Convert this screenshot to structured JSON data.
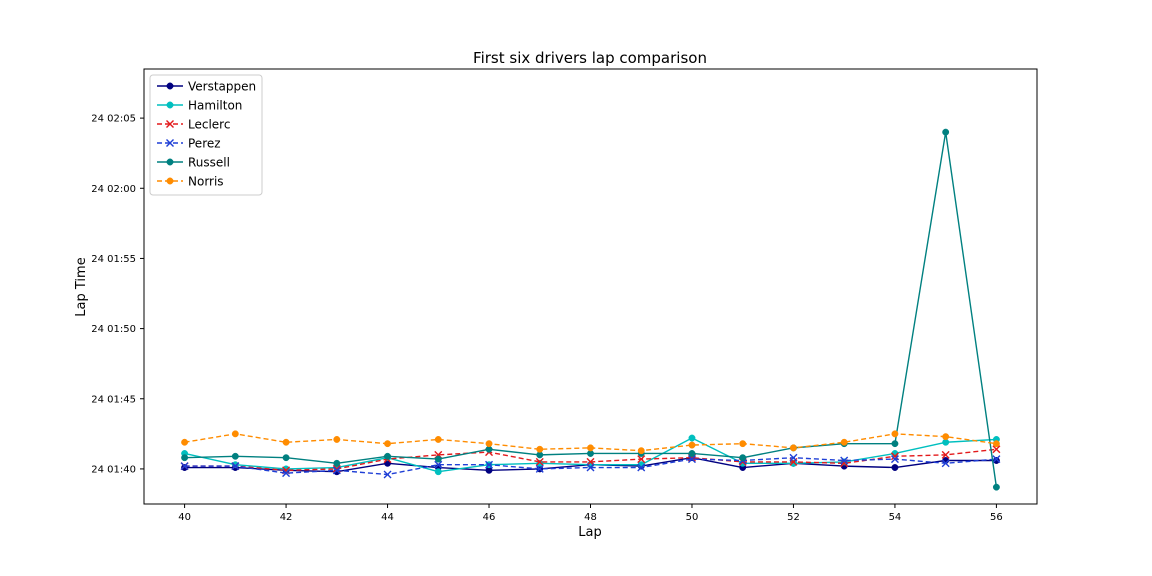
{
  "chart_data": {
    "type": "line",
    "title": "First six drivers lap comparison",
    "xlabel": "Lap",
    "ylabel": "Lap Time",
    "x": [
      40,
      41,
      42,
      43,
      44,
      45,
      46,
      47,
      48,
      49,
      50,
      51,
      52,
      53,
      54,
      55,
      56
    ],
    "xlim": [
      39.2,
      56.8
    ],
    "xticks": [
      40,
      42,
      44,
      46,
      48,
      50,
      52,
      54,
      56
    ],
    "ylim": [
      97.5,
      128.5
    ],
    "yticks": [
      {
        "value": 100,
        "label": "24 01:40"
      },
      {
        "value": 105,
        "label": "24 01:45"
      },
      {
        "value": 110,
        "label": "24 01:50"
      },
      {
        "value": 115,
        "label": "24 01:55"
      },
      {
        "value": 120,
        "label": "24 02:00"
      },
      {
        "value": 125,
        "label": "24 02:05"
      }
    ],
    "grid": false,
    "legend_position": "top-left",
    "series": [
      {
        "name": "Verstappen",
        "color": "#000080",
        "dash": "solid",
        "marker": "circle",
        "values": [
          100.1,
          100.1,
          99.9,
          99.8,
          100.4,
          100.1,
          99.9,
          100.0,
          100.3,
          100.2,
          100.8,
          100.1,
          100.4,
          100.2,
          100.1,
          100.6,
          100.6
        ]
      },
      {
        "name": "Hamilton",
        "color": "#00bfbf",
        "dash": "solid",
        "marker": "circle",
        "values": [
          101.1,
          100.3,
          100.0,
          100.1,
          100.8,
          99.8,
          100.3,
          100.4,
          100.3,
          100.3,
          102.2,
          100.4,
          100.4,
          100.5,
          101.1,
          101.9,
          102.1
        ]
      },
      {
        "name": "Leclerc",
        "color": "#e31a1c",
        "dash": "dashed",
        "marker": "x",
        "values": [
          100.2,
          100.2,
          99.9,
          100.0,
          100.7,
          101.0,
          101.2,
          100.5,
          100.5,
          100.7,
          100.8,
          100.5,
          100.5,
          100.4,
          100.9,
          101.0,
          101.4
        ]
      },
      {
        "name": "Perez",
        "color": "#1f3fd6",
        "dash": "dashed",
        "marker": "x",
        "values": [
          100.2,
          100.2,
          99.7,
          99.9,
          99.6,
          100.3,
          100.3,
          100.0,
          100.1,
          100.1,
          100.7,
          100.6,
          100.8,
          100.6,
          100.7,
          100.4,
          100.7
        ]
      },
      {
        "name": "Russell",
        "color": "#008080",
        "dash": "solid",
        "marker": "circle",
        "values": [
          100.8,
          100.9,
          100.8,
          100.4,
          100.9,
          100.7,
          101.4,
          101.0,
          101.1,
          101.1,
          101.1,
          100.8,
          101.5,
          101.8,
          101.8,
          124.0,
          98.7
        ]
      },
      {
        "name": "Norris",
        "color": "#ff8c00",
        "dash": "dashed",
        "marker": "circle",
        "values": [
          101.9,
          102.5,
          101.9,
          102.1,
          101.8,
          102.1,
          101.8,
          101.4,
          101.5,
          101.3,
          101.7,
          101.8,
          101.5,
          101.9,
          102.5,
          102.3,
          101.8
        ]
      }
    ]
  }
}
